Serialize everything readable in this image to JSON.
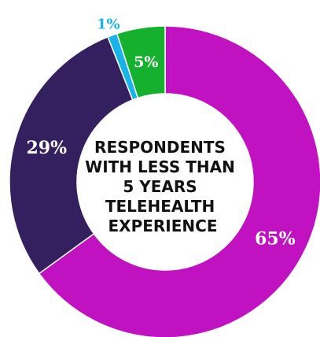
{
  "chart_data": {
    "type": "pie",
    "donut": true,
    "center_text": [
      "RESPONDENTS",
      "WITH LESS THAN",
      "5 YEARS",
      "TELEHEALTH",
      "EXPERIENCE"
    ],
    "slices": [
      {
        "value": 65,
        "label": "65%",
        "color": "#C012C0",
        "label_color": "#FFFFFF"
      },
      {
        "value": 29,
        "label": "29%",
        "color": "#35205F",
        "label_color": "#FFFFFF"
      },
      {
        "value": 1,
        "label": "1%",
        "color": "#1AB3E8",
        "label_color": "#1AB3E8"
      },
      {
        "value": 5,
        "label": "5%",
        "color": "#14B02E",
        "label_color": "#FFFFFF"
      }
    ]
  }
}
